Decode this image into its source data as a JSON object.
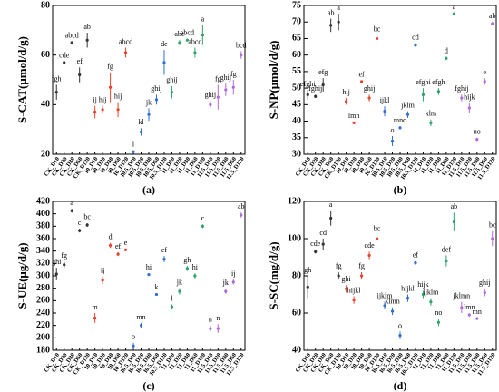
{
  "chart_data": [
    {
      "type": "dotplot",
      "panel_label": "(a)",
      "ylabel": "S-CAT(μmol/d/g)",
      "categories": [
        "CK_D10",
        "CK_D20",
        "CK_D30",
        "CK_D60",
        "CK_D120",
        "I0_D10",
        "I0_D20",
        "I0_D30",
        "I0_D60",
        "I0_D120",
        "I0.5_D10",
        "I0.5_D20",
        "I0.5_D30",
        "I0.5_D60",
        "I0.5_D120",
        "I1_D10",
        "I1_D20",
        "I1_D30",
        "I1_D60",
        "I1_D120",
        "I1.5_D10",
        "I1.5_D20",
        "I1.5_D30",
        "I1.5_D60",
        "I1.5_D120"
      ],
      "values": [
        45,
        57,
        65,
        52,
        66,
        37,
        38,
        47,
        38,
        61,
        21,
        29,
        36,
        42,
        57,
        45,
        65,
        66,
        61,
        68,
        40,
        43,
        46,
        47,
        60
      ],
      "errors": [
        3,
        0.5,
        0.5,
        3,
        3,
        2.5,
        1.5,
        6,
        3,
        2,
        0.5,
        1.5,
        2.5,
        2,
        5,
        2.5,
        1,
        0.5,
        2,
        4,
        1.5,
        5,
        2.5,
        3,
        1.5
      ],
      "labels": [
        "fgh",
        "cde",
        "abcd",
        "ef",
        "ab",
        "ij",
        "hij",
        "fg",
        "hij",
        "abcd",
        "l",
        "kl",
        "jk",
        "ghij",
        "de",
        "ghij",
        "abc",
        "abcd",
        "abcd",
        "a",
        "ghij",
        "fg",
        "ghij",
        "fg",
        "bcd"
      ],
      "colors": [
        "#333333",
        "#333333",
        "#333333",
        "#333333",
        "#333333",
        "#e8412c",
        "#e8412c",
        "#e8412c",
        "#e8412c",
        "#e8412c",
        "#2f6fd0",
        "#2f6fd0",
        "#2f6fd0",
        "#2f6fd0",
        "#2f6fd0",
        "#2fa36b",
        "#2fa36b",
        "#2fa36b",
        "#2fa36b",
        "#2fa36b",
        "#b06ad8",
        "#b06ad8",
        "#b06ad8",
        "#b06ad8",
        "#b06ad8"
      ],
      "ylim": [
        20,
        80
      ],
      "yticks": [
        20,
        40,
        60,
        80
      ]
    },
    {
      "type": "dotplot",
      "panel_label": "(b)",
      "ylabel": "S-NP(μmol/d/g)",
      "categories": [
        "CK_D10",
        "CK_D20",
        "CK_D30",
        "CK_D60",
        "CK_D120",
        "I0_D10",
        "I0_D20",
        "I0_D30",
        "I0_D60",
        "I0_D120",
        "I0.5_D10",
        "I0.5_D20",
        "I0.5_D30",
        "I0.5_D60",
        "I0.5_D120",
        "I1_D10",
        "I1_D20",
        "I1_D30",
        "I1_D60",
        "I1_D120",
        "I1.5_D10",
        "I1.5_D20",
        "I1.5_D30",
        "I1.5_D60",
        "I1.5_D120"
      ],
      "values": [
        48,
        47.5,
        51,
        69,
        70,
        46,
        39.5,
        52,
        47,
        65,
        43,
        34,
        38,
        42,
        63,
        48,
        39.5,
        49,
        59,
        72.5,
        47,
        44,
        34.5,
        52,
        69.5
      ],
      "errors": [
        1.5,
        0.5,
        2,
        2,
        2.5,
        1,
        0.3,
        0.3,
        1,
        1,
        1.5,
        1.5,
        0.5,
        1,
        0.5,
        2,
        1,
        1,
        0.5,
        0.3,
        1,
        1.5,
        0.5,
        1,
        0.5
      ],
      "labels": [
        "efghi",
        "fghij",
        "efg",
        "ab",
        "a",
        "hij",
        "lmn",
        "ef",
        "ghij",
        "bc",
        "ijkl",
        "o",
        "mno",
        "jklm",
        "cd",
        "efghi",
        "klm",
        "efgh",
        "d",
        "a",
        "fghij",
        "hijk",
        "no",
        "e",
        "ab"
      ],
      "colors": [
        "#333333",
        "#333333",
        "#333333",
        "#333333",
        "#333333",
        "#e8412c",
        "#e8412c",
        "#e8412c",
        "#e8412c",
        "#e8412c",
        "#2f6fd0",
        "#2f6fd0",
        "#2f6fd0",
        "#2f6fd0",
        "#2f6fd0",
        "#2fa36b",
        "#2fa36b",
        "#2fa36b",
        "#2fa36b",
        "#2fa36b",
        "#b06ad8",
        "#b06ad8",
        "#b06ad8",
        "#b06ad8",
        "#b06ad8"
      ],
      "ylim": [
        30,
        75
      ],
      "yticks": [
        30,
        35,
        40,
        45,
        50,
        55,
        60,
        65,
        70,
        75
      ]
    },
    {
      "type": "dotplot",
      "panel_label": "(c)",
      "ylabel": "S-UE(μg/d/g)",
      "categories": [
        "CK_D10",
        "CK_D20",
        "CK_D30",
        "CK_D60",
        "CK_D120",
        "I0_D10",
        "I0_D20",
        "I0_D30",
        "I0_D60",
        "I0_D120",
        "I0.5_D10",
        "I0.5_D20",
        "I0.5_D30",
        "I0.5_D60",
        "I0.5_D120",
        "I1_D10",
        "I1_D20",
        "I1_D30",
        "I1_D60",
        "I1_D120",
        "I1.5_D10",
        "I1.5_D20",
        "I1.5_D30",
        "I1.5_D60",
        "I1.5_D120"
      ],
      "values": [
        303,
        318,
        405,
        373,
        382,
        232,
        293,
        349,
        335,
        342,
        187,
        220,
        302,
        270,
        327,
        250,
        275,
        312,
        300,
        380,
        215,
        215,
        275,
        290,
        398
      ],
      "errors": [
        10,
        5,
        3,
        3,
        3,
        8,
        6,
        4,
        3,
        2,
        5,
        4,
        2,
        2,
        5,
        4,
        5,
        4,
        4,
        3,
        5,
        7,
        4,
        4,
        4
      ],
      "labels": [
        "ghi",
        "fg",
        "a",
        "c",
        "bc",
        "m",
        "ij",
        "d",
        "ef",
        "e",
        "o",
        "mn",
        "hi",
        "k",
        "ef",
        "l",
        "jk",
        "gh",
        "hi",
        "c",
        "n",
        "n",
        "jk",
        "ij",
        "ab"
      ],
      "colors": [
        "#333333",
        "#333333",
        "#333333",
        "#333333",
        "#333333",
        "#e8412c",
        "#e8412c",
        "#e8412c",
        "#e8412c",
        "#e8412c",
        "#2f6fd0",
        "#2f6fd0",
        "#2f6fd0",
        "#2f6fd0",
        "#2f6fd0",
        "#2fa36b",
        "#2fa36b",
        "#2fa36b",
        "#2fa36b",
        "#2fa36b",
        "#b06ad8",
        "#b06ad8",
        "#b06ad8",
        "#b06ad8",
        "#b06ad8"
      ],
      "ylim": [
        180,
        420
      ],
      "yticks": [
        180,
        200,
        220,
        240,
        260,
        280,
        300,
        320,
        340,
        360,
        380,
        400,
        420
      ]
    },
    {
      "type": "dotplot",
      "panel_label": "(d)",
      "ylabel": "S-SC(mg/d/g)",
      "categories": [
        "CK_D10",
        "CK_D20",
        "CK_D30",
        "CK_D60",
        "CK_D120",
        "I0_D10",
        "I0_D20",
        "I0_D30",
        "I0_D60",
        "I0_D120",
        "I0.5_D10",
        "I0.5_D20",
        "I0.5_D30",
        "I0.5_D60",
        "I0.5_D120",
        "I1_D10",
        "I1_D20",
        "I1_D30",
        "I1_D60",
        "I1_D120",
        "I1.5_D10",
        "I1.5_D20",
        "I1.5_D30",
        "I1.5_D60",
        "I1.5_D120"
      ],
      "values": [
        74,
        93,
        97,
        111,
        80,
        73,
        67,
        80,
        91,
        100,
        64,
        61,
        48,
        68,
        87,
        70,
        66,
        55,
        88,
        109,
        63,
        59,
        57,
        71,
        100
      ],
      "errors": [
        6,
        1,
        3,
        4,
        2,
        2,
        2,
        2,
        2,
        2,
        2,
        2,
        2,
        2,
        1,
        2,
        2,
        2,
        3,
        5,
        3,
        1,
        0.5,
        2,
        4
      ],
      "labels": [
        "gh",
        "cde",
        "cd",
        "a",
        "fg",
        "ghi",
        "hijkl",
        "fg",
        "cde",
        "bc",
        "ijklm",
        "klmn",
        "o",
        "hijkl",
        "ef",
        "hijk",
        "ijklm",
        "no",
        "def",
        "ab",
        "jklmn",
        "lmn",
        "mn",
        "ghij",
        "bc"
      ],
      "colors": [
        "#333333",
        "#333333",
        "#333333",
        "#333333",
        "#333333",
        "#e8412c",
        "#e8412c",
        "#e8412c",
        "#e8412c",
        "#e8412c",
        "#2f6fd0",
        "#2f6fd0",
        "#2f6fd0",
        "#2f6fd0",
        "#2f6fd0",
        "#2fa36b",
        "#2fa36b",
        "#2fa36b",
        "#2fa36b",
        "#2fa36b",
        "#b06ad8",
        "#b06ad8",
        "#b06ad8",
        "#b06ad8",
        "#b06ad8"
      ],
      "ylim": [
        40,
        120
      ],
      "yticks": [
        40,
        60,
        80,
        100,
        120
      ]
    }
  ]
}
